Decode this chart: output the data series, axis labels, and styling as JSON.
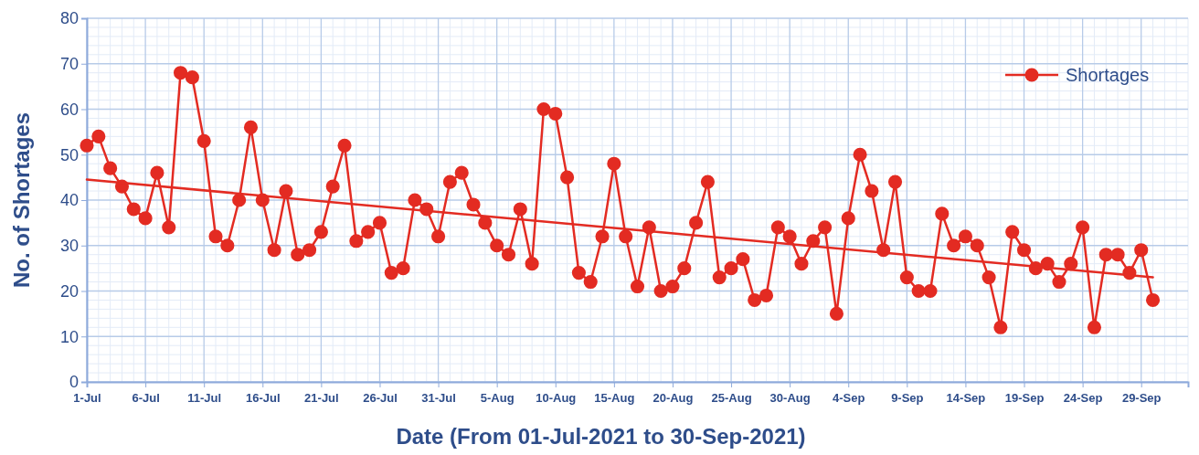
{
  "chart_data": {
    "type": "line",
    "xlabel": "Date (From 01-Jul-2021 to 30-Sep-2021)",
    "ylabel": "No. of Shortages",
    "xlim": [
      "2021-07-01",
      "2021-10-03"
    ],
    "ylim": [
      0,
      80
    ],
    "yticks": [
      0,
      10,
      20,
      30,
      40,
      50,
      60,
      70,
      80
    ],
    "xticks": [
      {
        "value": "2021-07-01",
        "label": "1-Jul"
      },
      {
        "value": "2021-07-06",
        "label": "6-Jul"
      },
      {
        "value": "2021-07-11",
        "label": "11-Jul"
      },
      {
        "value": "2021-07-16",
        "label": "16-Jul"
      },
      {
        "value": "2021-07-21",
        "label": "21-Jul"
      },
      {
        "value": "2021-07-26",
        "label": "26-Jul"
      },
      {
        "value": "2021-07-31",
        "label": "31-Jul"
      },
      {
        "value": "2021-08-05",
        "label": "5-Aug"
      },
      {
        "value": "2021-08-10",
        "label": "10-Aug"
      },
      {
        "value": "2021-08-15",
        "label": "15-Aug"
      },
      {
        "value": "2021-08-20",
        "label": "20-Aug"
      },
      {
        "value": "2021-08-25",
        "label": "25-Aug"
      },
      {
        "value": "2021-08-30",
        "label": "30-Aug"
      },
      {
        "value": "2021-09-04",
        "label": "4-Sep"
      },
      {
        "value": "2021-09-09",
        "label": "9-Sep"
      },
      {
        "value": "2021-09-14",
        "label": "14-Sep"
      },
      {
        "value": "2021-09-19",
        "label": "19-Sep"
      },
      {
        "value": "2021-09-24",
        "label": "24-Sep"
      },
      {
        "value": "2021-09-29",
        "label": "29-Sep"
      }
    ],
    "grid": true,
    "legend": "top right",
    "marker": "circle",
    "line_style": "solid",
    "series": [
      {
        "name": "Shortages",
        "color": "#e32b22",
        "x": [
          "2021-07-01",
          "2021-07-02",
          "2021-07-03",
          "2021-07-04",
          "2021-07-05",
          "2021-07-06",
          "2021-07-07",
          "2021-07-08",
          "2021-07-09",
          "2021-07-10",
          "2021-07-11",
          "2021-07-12",
          "2021-07-13",
          "2021-07-14",
          "2021-07-15",
          "2021-07-16",
          "2021-07-17",
          "2021-07-18",
          "2021-07-19",
          "2021-07-20",
          "2021-07-21",
          "2021-07-22",
          "2021-07-23",
          "2021-07-24",
          "2021-07-25",
          "2021-07-26",
          "2021-07-27",
          "2021-07-28",
          "2021-07-29",
          "2021-07-30",
          "2021-07-31",
          "2021-08-01",
          "2021-08-02",
          "2021-08-03",
          "2021-08-04",
          "2021-08-05",
          "2021-08-06",
          "2021-08-07",
          "2021-08-08",
          "2021-08-09",
          "2021-08-10",
          "2021-08-11",
          "2021-08-12",
          "2021-08-13",
          "2021-08-14",
          "2021-08-15",
          "2021-08-16",
          "2021-08-17",
          "2021-08-18",
          "2021-08-19",
          "2021-08-20",
          "2021-08-21",
          "2021-08-22",
          "2021-08-23",
          "2021-08-24",
          "2021-08-25",
          "2021-08-26",
          "2021-08-27",
          "2021-08-28",
          "2021-08-29",
          "2021-08-30",
          "2021-08-31",
          "2021-09-01",
          "2021-09-02",
          "2021-09-03",
          "2021-09-04",
          "2021-09-05",
          "2021-09-06",
          "2021-09-07",
          "2021-09-08",
          "2021-09-09",
          "2021-09-10",
          "2021-09-11",
          "2021-09-12",
          "2021-09-13",
          "2021-09-14",
          "2021-09-15",
          "2021-09-16",
          "2021-09-17",
          "2021-09-18",
          "2021-09-19",
          "2021-09-20",
          "2021-09-21",
          "2021-09-22",
          "2021-09-23",
          "2021-09-24",
          "2021-09-25",
          "2021-09-26",
          "2021-09-27",
          "2021-09-28",
          "2021-09-29",
          "2021-09-30"
        ],
        "values": [
          52,
          54,
          47,
          43,
          38,
          36,
          46,
          34,
          68,
          67,
          53,
          32,
          30,
          40,
          56,
          40,
          29,
          42,
          28,
          29,
          33,
          43,
          52,
          31,
          33,
          35,
          24,
          25,
          40,
          38,
          32,
          44,
          46,
          39,
          35,
          30,
          28,
          38,
          26,
          60,
          59,
          45,
          24,
          22,
          32,
          48,
          32,
          21,
          34,
          20,
          21,
          25,
          35,
          44,
          23,
          25,
          27,
          18,
          19,
          34,
          32,
          26,
          31,
          34,
          15,
          36,
          50,
          42,
          29,
          44,
          23,
          20,
          20,
          37,
          30,
          32,
          30,
          23,
          12,
          33,
          29,
          25,
          26,
          22,
          26,
          34,
          12,
          28,
          28,
          24,
          29,
          18
        ]
      },
      {
        "type": "line",
        "marker": "none",
        "color": "#e32b22",
        "x": [
          "2021-07-01",
          "2021-09-30"
        ],
        "values": [
          44.5,
          23
        ]
      }
    ]
  }
}
